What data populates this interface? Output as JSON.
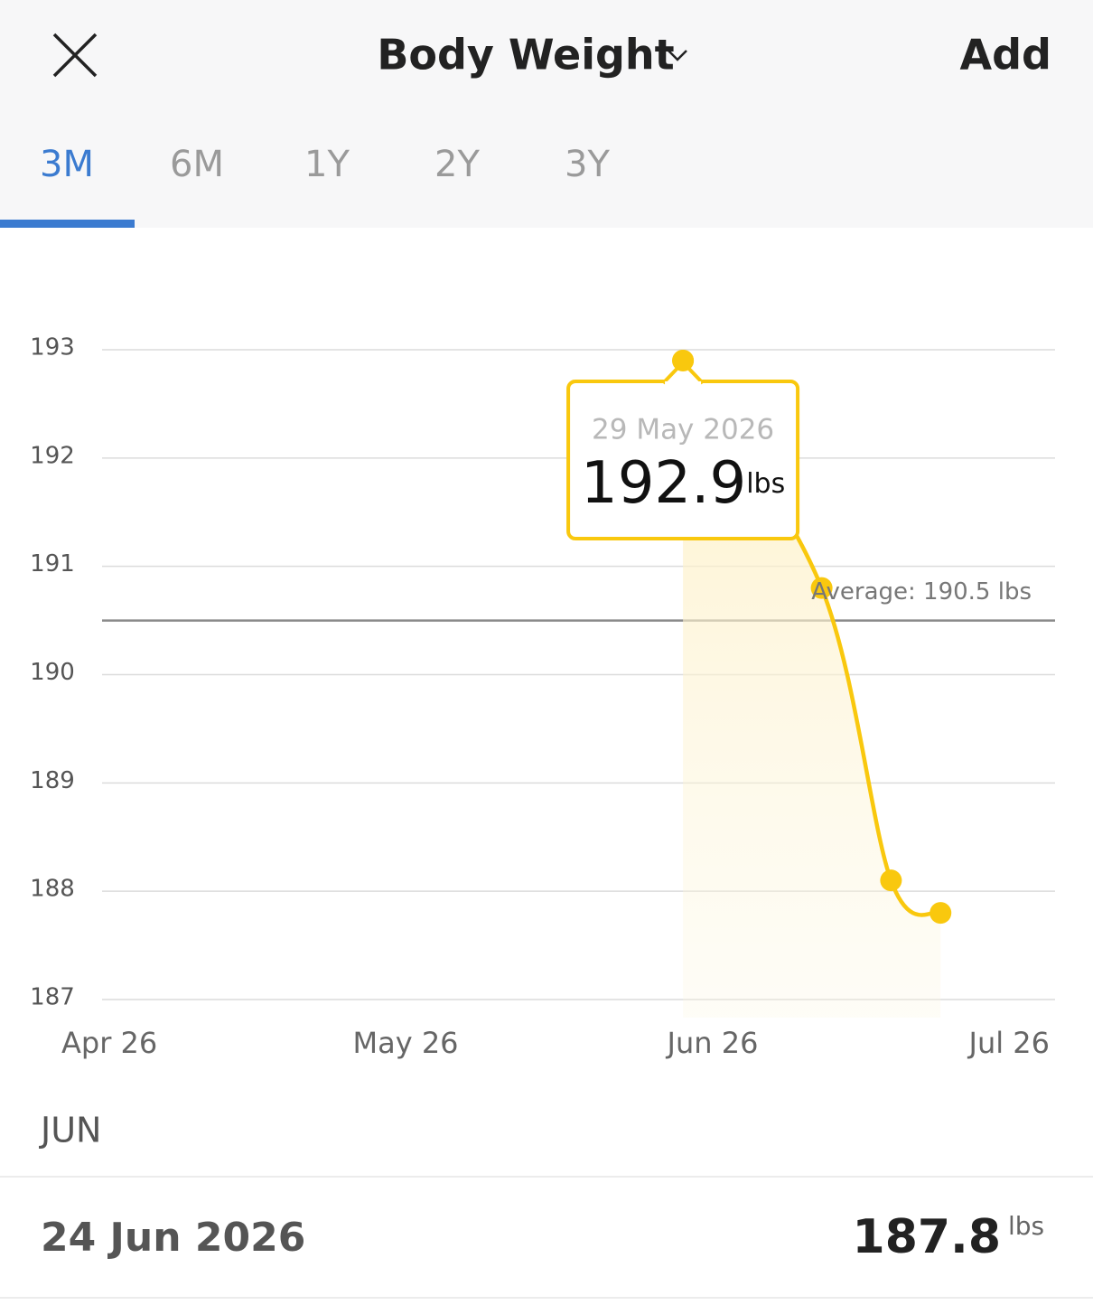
{
  "header": {
    "title": "Body Weight",
    "action": "Add"
  },
  "tabs": [
    "3M",
    "6M",
    "1Y",
    "2Y",
    "3Y"
  ],
  "chart_data": {
    "type": "line",
    "x": [
      "2026-05-29",
      "2026-06-12",
      "2026-06-19",
      "2026-06-24"
    ],
    "series": [
      {
        "color": "#f9c80e",
        "values": [
          192.9,
          190.8,
          188.1,
          187.8
        ]
      }
    ],
    "xlim": [
      "2026-04-01",
      "2026-07-01"
    ],
    "xticks": [
      {
        "value": "2026-04-01",
        "label": "Apr 26"
      },
      {
        "value": "2026-05-01",
        "label": "May 26"
      },
      {
        "value": "2026-06-01",
        "label": "Jun 26"
      },
      {
        "value": "2026-07-01",
        "label": "Jul 26"
      }
    ],
    "ylim": [
      187,
      193
    ],
    "yticks": [
      187,
      188,
      189,
      190,
      191,
      192,
      193
    ],
    "grid": true,
    "average": 190.5,
    "average_label": "Average: 190.5 lbs",
    "tooltip": {
      "date": "29 May 2026",
      "unit": "lbs"
    }
  },
  "month": "JUN",
  "entry": {
    "date": "24 Jun 2026",
    "value": 187.8,
    "unit": "lbs"
  }
}
